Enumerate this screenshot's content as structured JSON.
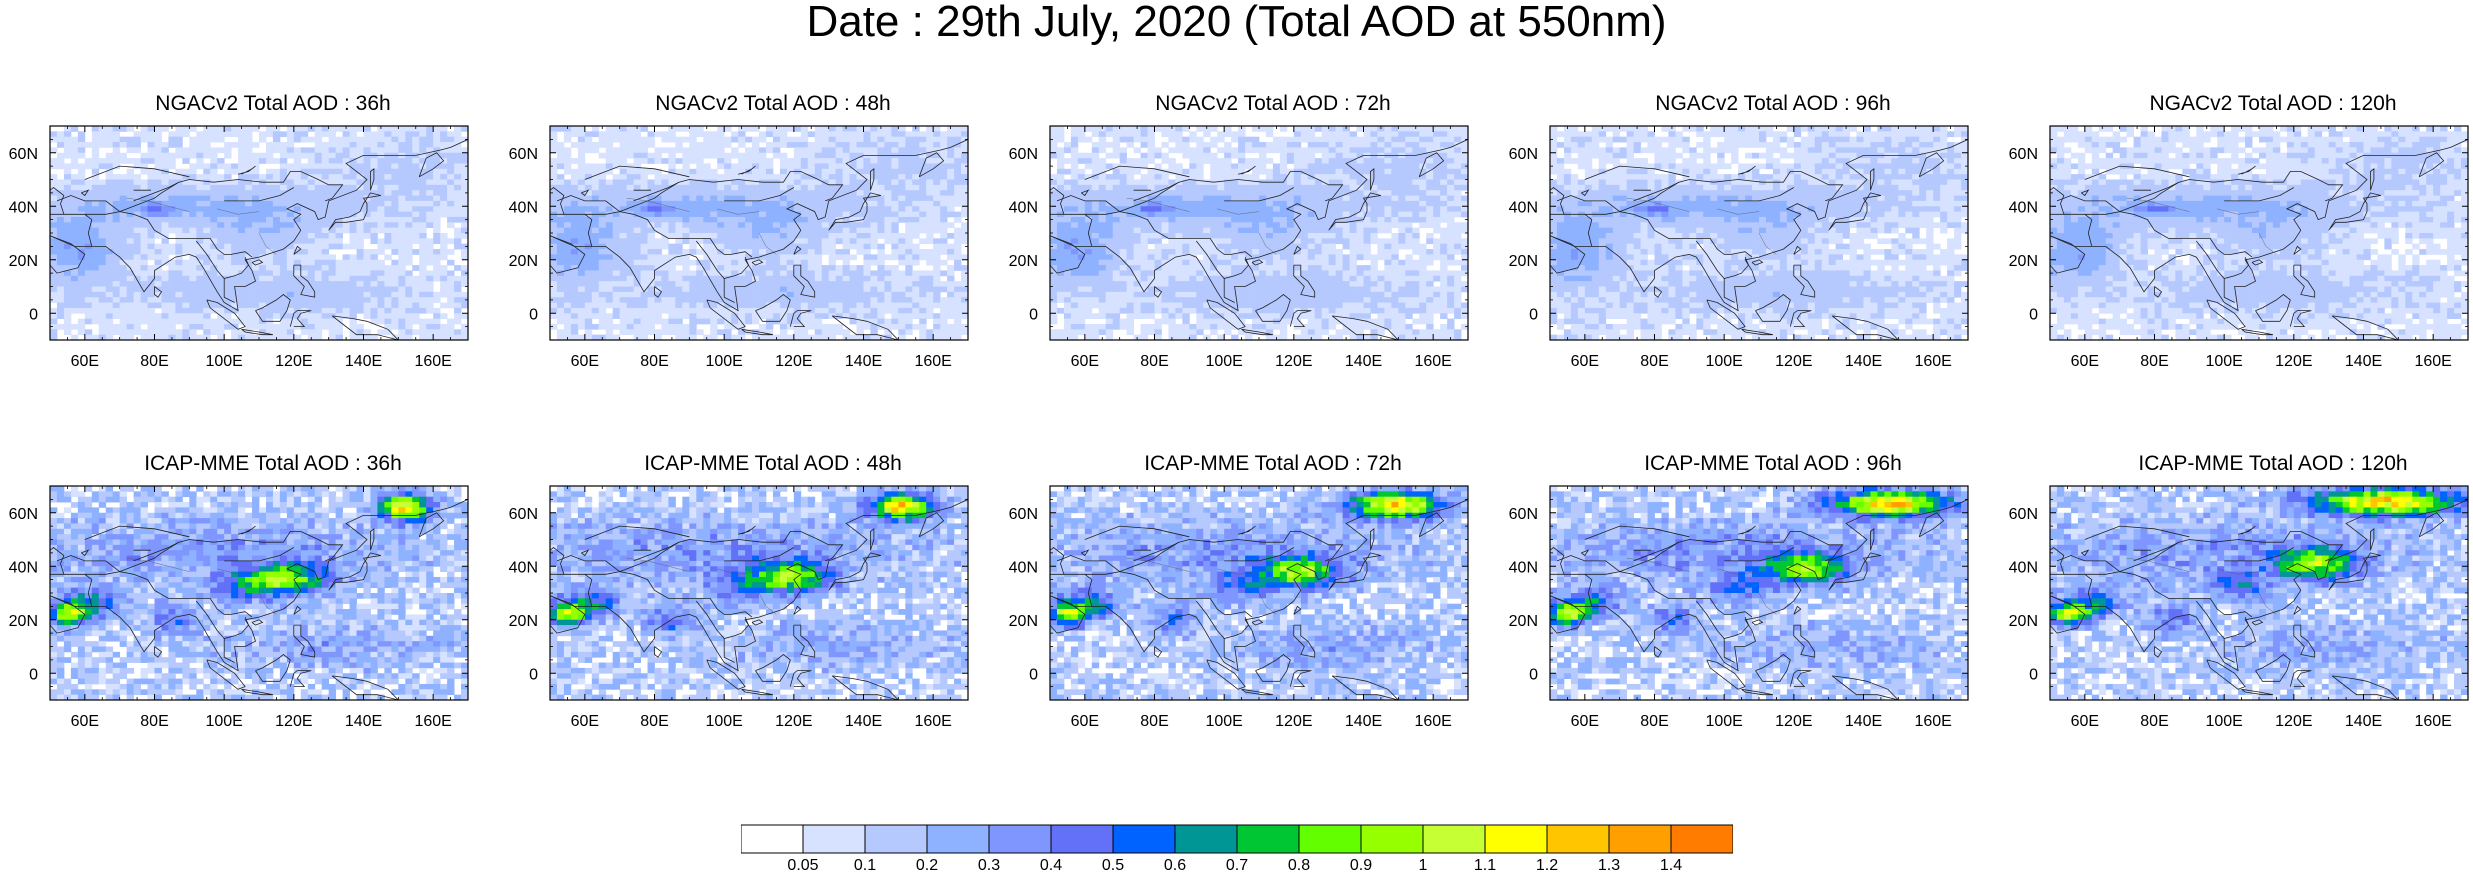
{
  "title": "Date : 29th July, 2020 (Total AOD at 550nm)",
  "map": {
    "lon_range": [
      50,
      170
    ],
    "lat_range": [
      -10,
      70
    ],
    "lon_ticks": [
      "60E",
      "80E",
      "100E",
      "120E",
      "140E",
      "160E"
    ],
    "lat_ticks": [
      "60N",
      "40N",
      "20N",
      "0"
    ]
  },
  "panels": [
    {
      "title": "NGACv2 Total AOD : 36h",
      "model": "NGACv2",
      "lead": 36
    },
    {
      "title": "NGACv2 Total AOD : 48h",
      "model": "NGACv2",
      "lead": 48
    },
    {
      "title": "NGACv2 Total AOD : 72h",
      "model": "NGACv2",
      "lead": 72
    },
    {
      "title": "NGACv2 Total AOD : 96h",
      "model": "NGACv2",
      "lead": 96
    },
    {
      "title": "NGACv2 Total AOD : 120h",
      "model": "NGACv2",
      "lead": 120
    },
    {
      "title": "ICAP-MME Total AOD : 36h",
      "model": "ICAP-MME",
      "lead": 36
    },
    {
      "title": "ICAP-MME Total AOD : 48h",
      "model": "ICAP-MME",
      "lead": 48
    },
    {
      "title": "ICAP-MME Total AOD : 72h",
      "model": "ICAP-MME",
      "lead": 72
    },
    {
      "title": "ICAP-MME Total AOD : 96h",
      "model": "ICAP-MME",
      "lead": 96
    },
    {
      "title": "ICAP-MME Total AOD : 120h",
      "model": "ICAP-MME",
      "lead": 120
    }
  ],
  "colorbar": {
    "labels": [
      "0.05",
      "0.1",
      "0.2",
      "0.3",
      "0.4",
      "0.5",
      "0.6",
      "0.7",
      "0.8",
      "0.9",
      "1",
      "1.1",
      "1.2",
      "1.3",
      "1.4"
    ],
    "colors": [
      "#ffffff",
      "#d6e2ff",
      "#b5c9ff",
      "#8eb2ff",
      "#7f96ff",
      "#6370f8",
      "#0062ff",
      "#009696",
      "#00c633",
      "#63ff00",
      "#96ff00",
      "#c6ff33",
      "#ffff00",
      "#ffc600",
      "#ffa000",
      "#ff7c00",
      "#ff1900"
    ]
  }
}
